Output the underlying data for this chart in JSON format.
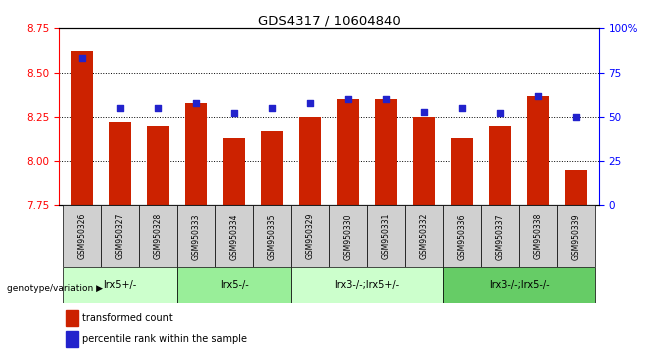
{
  "title": "GDS4317 / 10604840",
  "samples": [
    "GSM950326",
    "GSM950327",
    "GSM950328",
    "GSM950333",
    "GSM950334",
    "GSM950335",
    "GSM950329",
    "GSM950330",
    "GSM950331",
    "GSM950332",
    "GSM950336",
    "GSM950337",
    "GSM950338",
    "GSM950339"
  ],
  "bar_values": [
    8.62,
    8.22,
    8.2,
    8.33,
    8.13,
    8.17,
    8.25,
    8.35,
    8.35,
    8.25,
    8.13,
    8.2,
    8.37,
    7.95
  ],
  "dot_values": [
    83,
    55,
    55,
    58,
    52,
    55,
    58,
    60,
    60,
    53,
    55,
    52,
    62,
    50
  ],
  "ylim_left": [
    7.75,
    8.75
  ],
  "ylim_right": [
    0,
    100
  ],
  "bar_color": "#cc2200",
  "dot_color": "#2222cc",
  "groups": [
    {
      "label": "lrx5+/-",
      "start": 0,
      "end": 3
    },
    {
      "label": "lrx5-/-",
      "start": 3,
      "end": 6
    },
    {
      "label": "lrx3-/-;lrx5+/-",
      "start": 6,
      "end": 10
    },
    {
      "label": "lrx3-/-;lrx5-/-",
      "start": 10,
      "end": 14
    }
  ],
  "group_colors": [
    "#ccffcc",
    "#99ee99",
    "#ccffcc",
    "#66cc66"
  ],
  "legend_bar_label": "transformed count",
  "legend_dot_label": "percentile rank within the sample",
  "xlabel_row": "genotype/variation",
  "ytick_left": [
    7.75,
    8.0,
    8.25,
    8.5,
    8.75
  ],
  "ytick_right": [
    0,
    25,
    50,
    75,
    100
  ],
  "gridlines": [
    8.0,
    8.25,
    8.5
  ]
}
